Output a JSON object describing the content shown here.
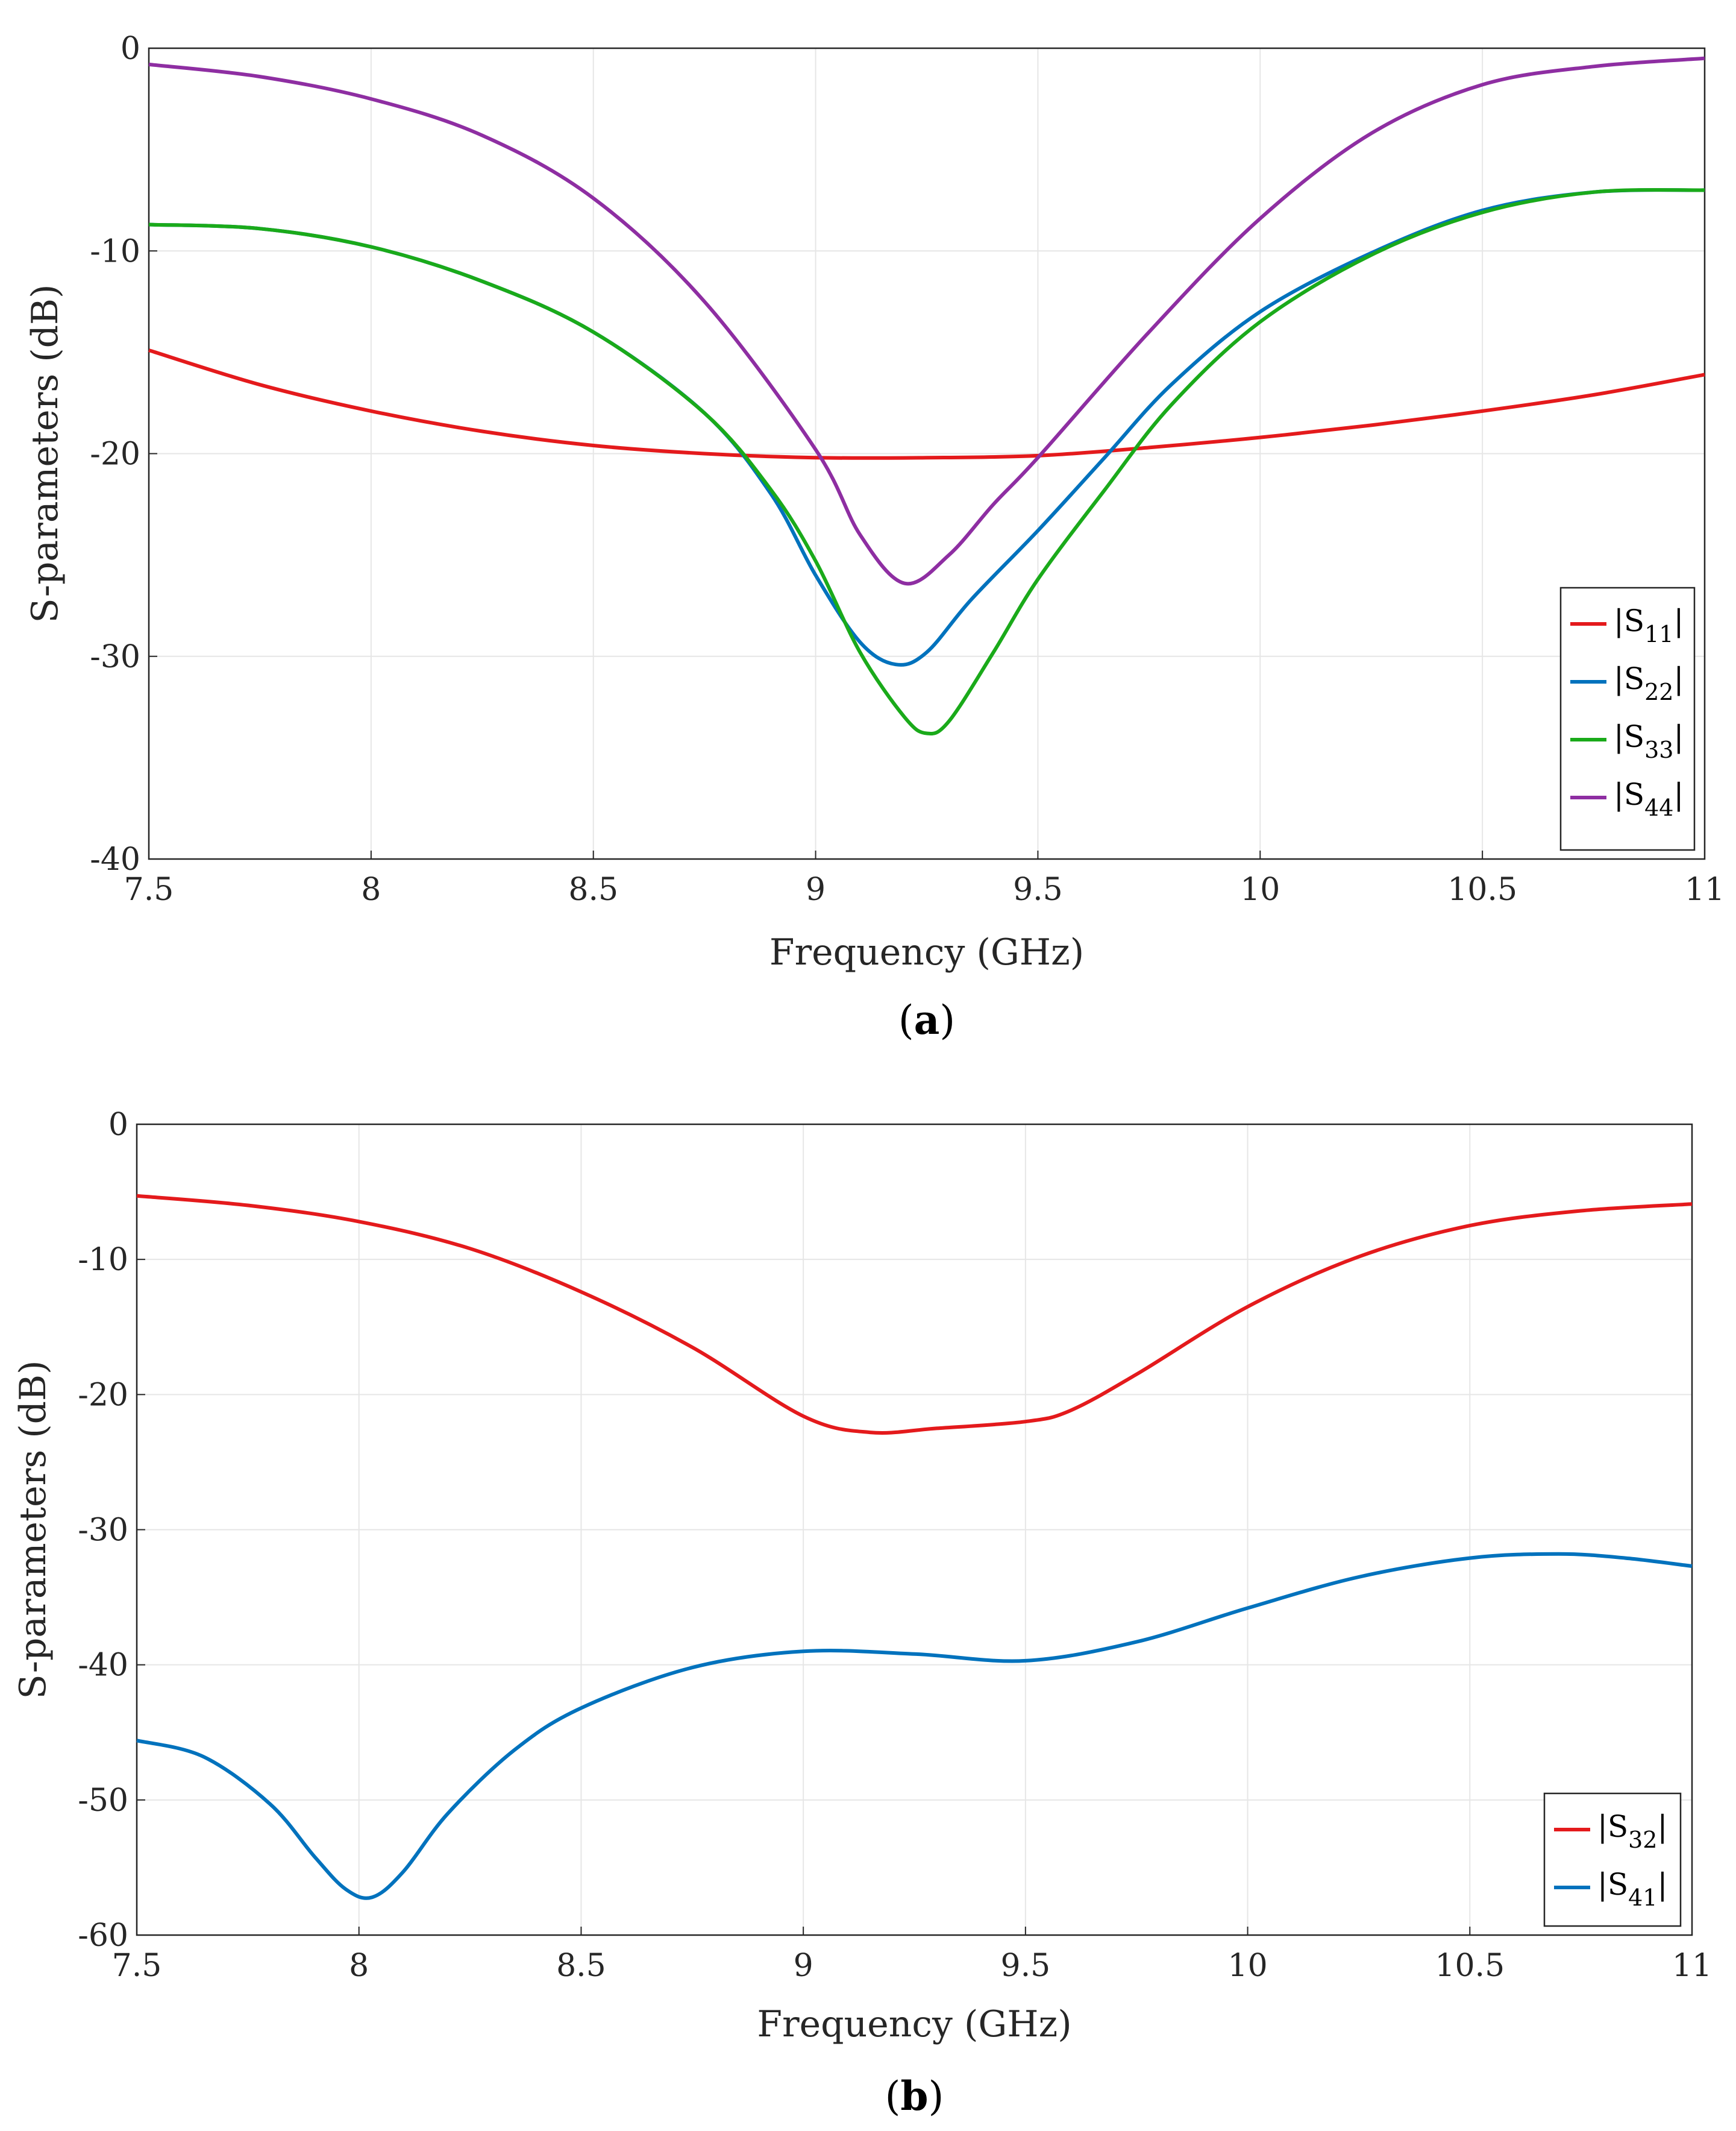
{
  "chart_data": [
    {
      "type": "line",
      "panel": "(a)",
      "panel_letter": "a",
      "xlabel": "Frequency (GHz)",
      "ylabel": "S-parameters (dB)",
      "xlim": [
        7.5,
        11
      ],
      "ylim": [
        -40,
        0
      ],
      "xticks": [
        7.5,
        8,
        8.5,
        9,
        9.5,
        10,
        10.5,
        11
      ],
      "xtick_labels": [
        "7.5",
        "8",
        "8.5",
        "9",
        "9.5",
        "10",
        "10.5",
        "11"
      ],
      "yticks": [
        0,
        -10,
        -20,
        -30,
        -40
      ],
      "ytick_labels": [
        "0",
        "-10",
        "-20",
        "-30",
        "-40"
      ],
      "grid": true,
      "legend_position": "bottom-right",
      "series": [
        {
          "name": "|S11|",
          "base": "|S",
          "sub": "11",
          "end": "|",
          "color": "#e41a1c",
          "x": [
            7.5,
            7.75,
            8.0,
            8.25,
            8.5,
            8.75,
            9.0,
            9.25,
            9.5,
            9.75,
            10.0,
            10.25,
            10.5,
            10.75,
            11.0
          ],
          "y": [
            -14.9,
            -16.6,
            -17.9,
            -18.9,
            -19.6,
            -20.0,
            -20.2,
            -20.2,
            -20.1,
            -19.7,
            -19.2,
            -18.6,
            -17.9,
            -17.1,
            -16.1
          ]
        },
        {
          "name": "|S22|",
          "base": "|S",
          "sub": "22",
          "end": "|",
          "color": "#0072bd",
          "x": [
            7.5,
            7.75,
            8.0,
            8.25,
            8.5,
            8.75,
            8.9,
            9.0,
            9.1,
            9.18,
            9.25,
            9.35,
            9.5,
            9.65,
            9.8,
            10.0,
            10.25,
            10.5,
            10.75,
            11.0
          ],
          "y": [
            -8.7,
            -8.9,
            -9.8,
            -11.5,
            -14.0,
            -18.0,
            -22.0,
            -26.0,
            -29.3,
            -30.4,
            -29.8,
            -27.2,
            -23.8,
            -20.2,
            -16.6,
            -13.0,
            -10.1,
            -8.0,
            -7.1,
            -7.0
          ]
        },
        {
          "name": "|S33|",
          "base": "|S",
          "sub": "33",
          "end": "|",
          "color": "#1aaa1a",
          "x": [
            7.5,
            7.75,
            8.0,
            8.25,
            8.5,
            8.75,
            8.9,
            9.0,
            9.1,
            9.2,
            9.25,
            9.3,
            9.4,
            9.5,
            9.65,
            9.8,
            10.0,
            10.25,
            10.5,
            10.75,
            11.0
          ],
          "y": [
            -8.7,
            -8.9,
            -9.8,
            -11.5,
            -14.0,
            -18.0,
            -21.8,
            -25.3,
            -29.8,
            -33.0,
            -33.8,
            -33.2,
            -29.8,
            -26.2,
            -21.8,
            -17.6,
            -13.5,
            -10.2,
            -8.1,
            -7.1,
            -7.0
          ]
        },
        {
          "name": "|S44|",
          "base": "|S",
          "sub": "44",
          "end": "|",
          "color": "#8e2ea2",
          "x": [
            7.5,
            7.75,
            8.0,
            8.25,
            8.5,
            8.75,
            9.0,
            9.1,
            9.2,
            9.3,
            9.4,
            9.5,
            9.75,
            10.0,
            10.25,
            10.5,
            10.75,
            11.0
          ],
          "y": [
            -0.8,
            -1.4,
            -2.5,
            -4.3,
            -7.4,
            -12.5,
            -19.8,
            -24.0,
            -26.4,
            -25.0,
            -22.5,
            -20.2,
            -14.0,
            -8.4,
            -4.2,
            -1.8,
            -0.9,
            -0.5
          ]
        }
      ]
    },
    {
      "type": "line",
      "panel": "(b)",
      "panel_letter": "b",
      "xlabel": "Frequency (GHz)",
      "ylabel": "S-parameters (dB)",
      "xlim": [
        7.5,
        11
      ],
      "ylim": [
        -60,
        0
      ],
      "xticks": [
        7.5,
        8,
        8.5,
        9,
        9.5,
        10,
        10.5,
        11
      ],
      "xtick_labels": [
        "7.5",
        "8",
        "8.5",
        "9",
        "9.5",
        "10",
        "10.5",
        "11"
      ],
      "yticks": [
        0,
        -10,
        -20,
        -30,
        -40,
        -50,
        -60
      ],
      "ytick_labels": [
        "0",
        "-10",
        "-20",
        "-30",
        "-40",
        "-50",
        "-60"
      ],
      "grid": true,
      "legend_position": "bottom-right",
      "series": [
        {
          "name": "|S32|",
          "base": "|S",
          "sub": "32",
          "end": "|",
          "color": "#e41a1c",
          "x": [
            7.5,
            7.75,
            8.0,
            8.25,
            8.5,
            8.75,
            9.0,
            9.15,
            9.3,
            9.5,
            9.6,
            9.75,
            10.0,
            10.25,
            10.5,
            10.75,
            11.0
          ],
          "y": [
            -5.3,
            -6.0,
            -7.2,
            -9.2,
            -12.4,
            -16.5,
            -21.6,
            -22.8,
            -22.5,
            -22.0,
            -21.2,
            -18.5,
            -13.5,
            -9.8,
            -7.5,
            -6.4,
            -5.9
          ]
        },
        {
          "name": "|S41|",
          "base": "|S",
          "sub": "41",
          "end": "|",
          "color": "#0072bd",
          "x": [
            7.5,
            7.65,
            7.8,
            7.9,
            7.97,
            8.03,
            8.1,
            8.2,
            8.35,
            8.5,
            8.75,
            9.0,
            9.25,
            9.5,
            9.75,
            10.0,
            10.25,
            10.5,
            10.7,
            10.85,
            11.0
          ],
          "y": [
            -45.6,
            -46.8,
            -50.3,
            -54.2,
            -56.6,
            -57.2,
            -55.3,
            -51.0,
            -46.3,
            -43.2,
            -40.2,
            -39.0,
            -39.2,
            -39.7,
            -38.3,
            -35.8,
            -33.5,
            -32.1,
            -31.8,
            -32.1,
            -32.7
          ]
        }
      ]
    }
  ]
}
